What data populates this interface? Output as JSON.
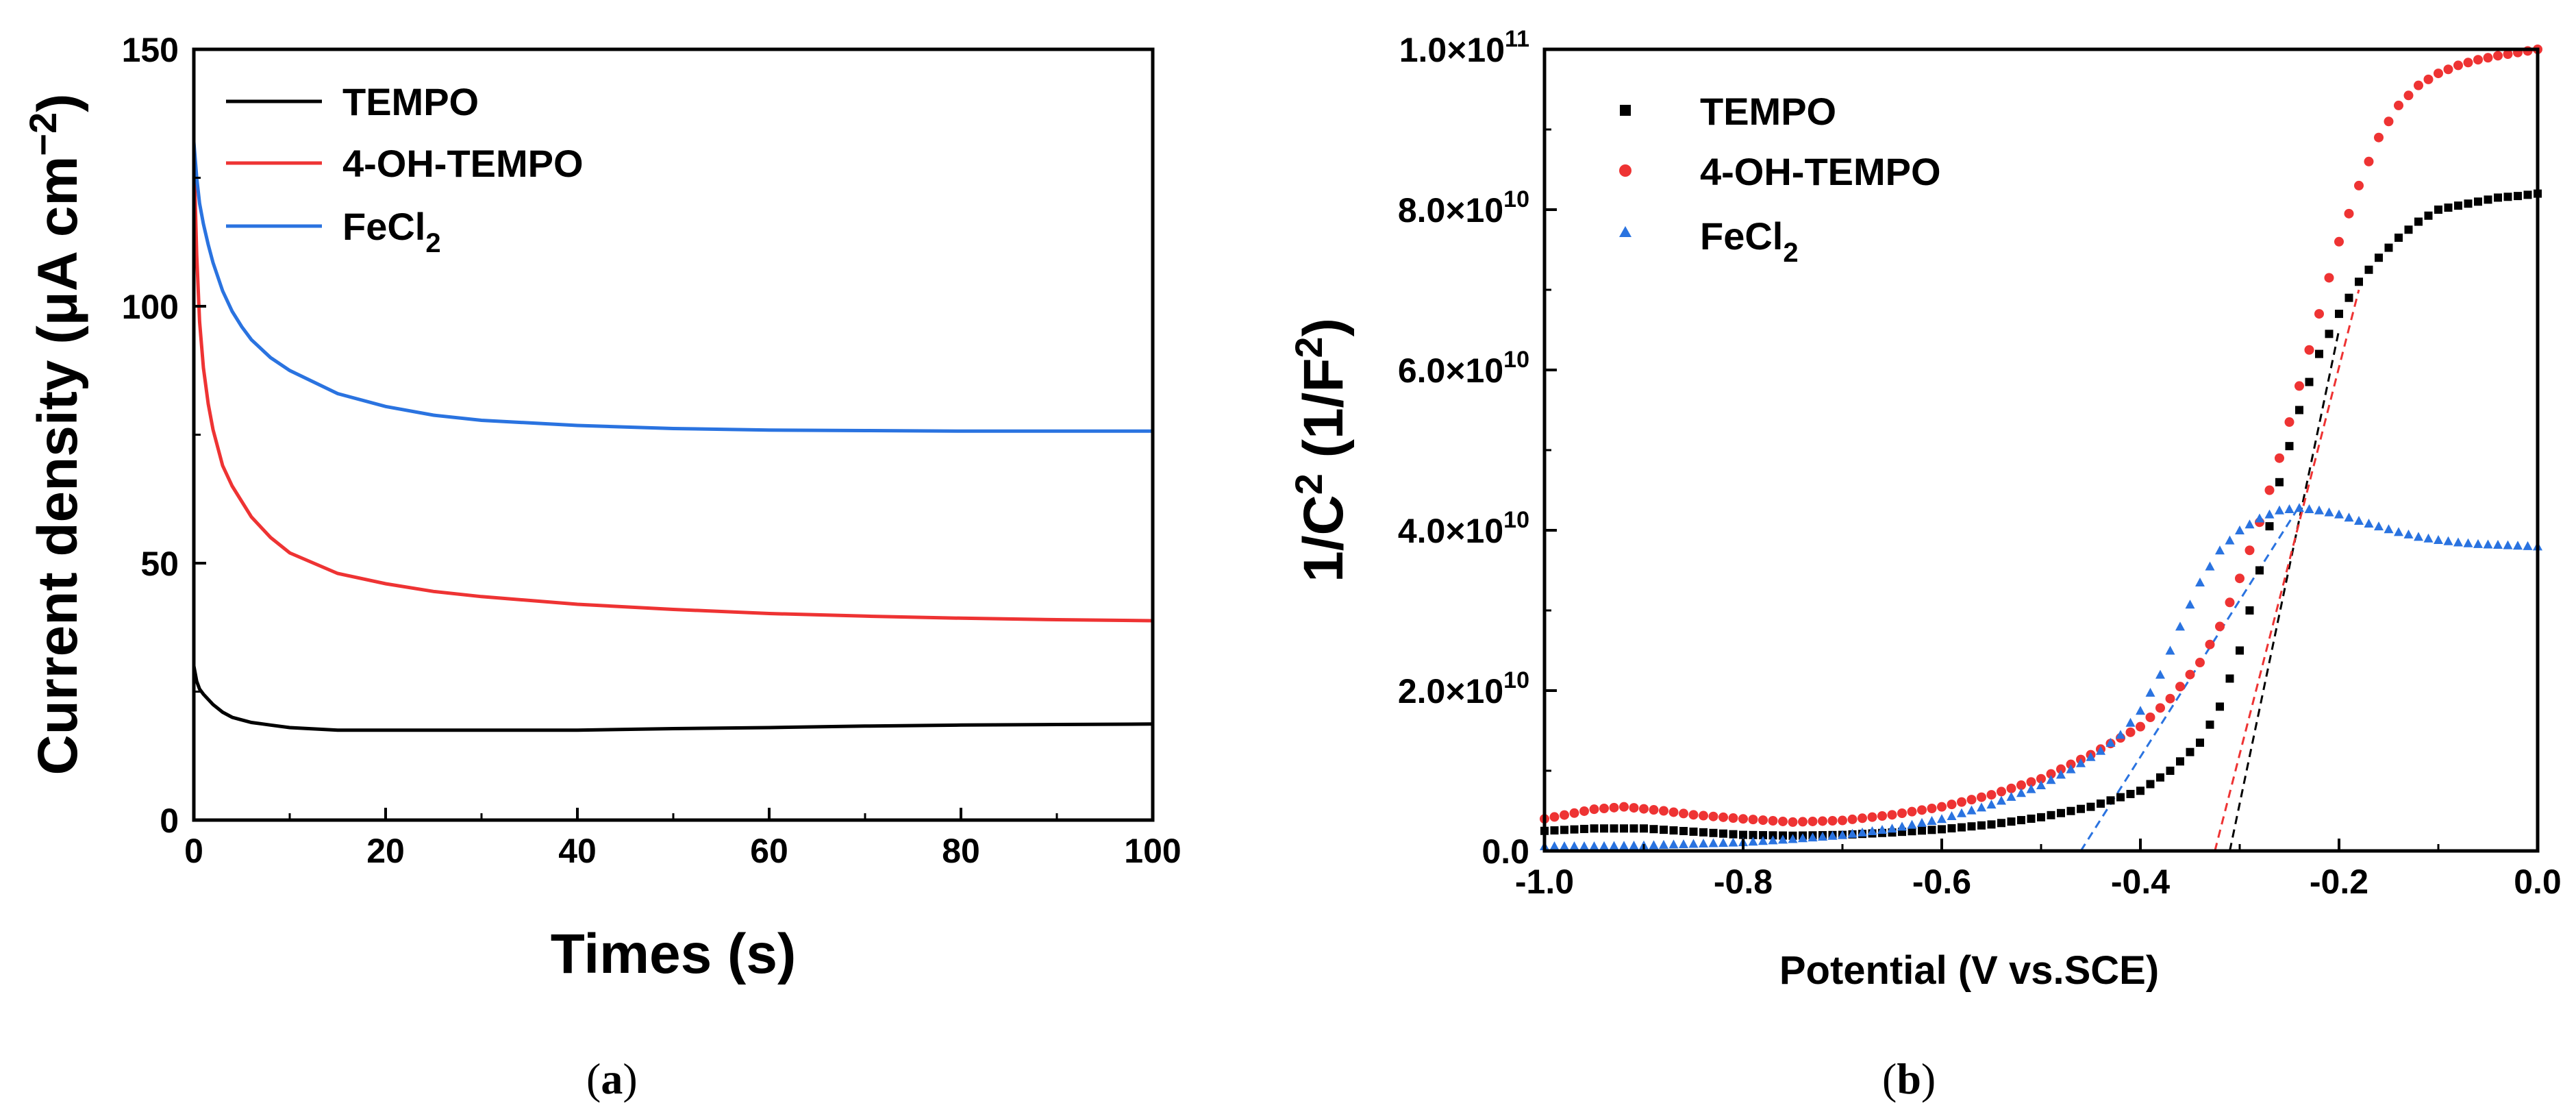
{
  "colors": {
    "tempo": "#000000",
    "oh_tempo": "#ee3333",
    "fecl2": "#2a73e0",
    "axis": "#000000"
  },
  "chart_data": [
    {
      "panel": "a",
      "caption": "(a)",
      "caption_letter": "a",
      "type": "line",
      "xlabel": "Times (s)",
      "ylabel": "Current density (μA cm⁻²)",
      "ylabel_main": "Current density (μA cm",
      "ylabel_sup": "−2",
      "ylabel_close": ")",
      "xlim": [
        0,
        100
      ],
      "ylim": [
        0,
        150
      ],
      "xticks": [
        "0",
        "20",
        "40",
        "60",
        "80",
        "100"
      ],
      "yticks": [
        "0",
        "50",
        "100",
        "150"
      ],
      "legend_placement": "top-left",
      "series": [
        {
          "name": "TEMPO",
          "label_main": "TEMPO",
          "label_sub": "",
          "color": "#000000",
          "x": [
            0,
            0.3,
            0.6,
            1,
            1.5,
            2,
            3,
            4,
            5,
            6,
            8,
            10,
            15,
            20,
            25,
            30,
            40,
            50,
            60,
            70,
            80,
            90,
            100
          ],
          "y": [
            30,
            27,
            25.5,
            24.5,
            23.5,
            22.5,
            21,
            20,
            19.5,
            19,
            18.5,
            18,
            17.5,
            17.5,
            17.5,
            17.5,
            17.5,
            17.8,
            18,
            18.3,
            18.5,
            18.6,
            18.7
          ]
        },
        {
          "name": "4-OH-TEMPO",
          "label_main": "4-OH-TEMPO",
          "label_sub": "",
          "color": "#ee3333",
          "x": [
            0,
            0.3,
            0.6,
            1,
            1.5,
            2,
            3,
            4,
            5,
            6,
            8,
            10,
            15,
            20,
            25,
            30,
            40,
            50,
            60,
            70,
            80,
            90,
            100
          ],
          "y": [
            130,
            110,
            97,
            88,
            81,
            76,
            69,
            65,
            62,
            59,
            55,
            52,
            48,
            46,
            44.5,
            43.5,
            42,
            41,
            40.2,
            39.7,
            39.3,
            39,
            38.8
          ]
        },
        {
          "name": "FeCl2",
          "label_main": "FeCl",
          "label_sub": "2",
          "color": "#2a73e0",
          "x": [
            0,
            0.3,
            0.6,
            1,
            1.5,
            2,
            3,
            4,
            5,
            6,
            8,
            10,
            15,
            20,
            25,
            30,
            40,
            50,
            60,
            70,
            80,
            90,
            100
          ],
          "y": [
            132,
            125,
            120,
            116,
            112,
            108.5,
            103,
            99,
            96,
            93.5,
            90,
            87.5,
            83,
            80.5,
            78.8,
            77.8,
            76.8,
            76.2,
            75.9,
            75.8,
            75.7,
            75.7,
            75.7
          ]
        }
      ]
    },
    {
      "panel": "b",
      "caption": "(b)",
      "caption_letter": "b",
      "type": "scatter",
      "xlabel": "Potential (V vs.SCE)",
      "ylabel": "1/C² (1/F²)",
      "ylabel_a": "1/C",
      "ylabel_sup1": "2",
      "ylabel_b": " (1/F",
      "ylabel_sup2": "2",
      "ylabel_c": ")",
      "xlim": [
        -1.0,
        0.0
      ],
      "ylim": [
        0,
        100000000000.0
      ],
      "xticks": [
        "-1.0",
        "-0.8",
        "-0.6",
        "-0.4",
        "-0.2",
        "0.0"
      ],
      "yticks": [
        {
          "mant": "0.0",
          "exp": ""
        },
        {
          "mant": "2.0×10",
          "exp": "10"
        },
        {
          "mant": "4.0×10",
          "exp": "10"
        },
        {
          "mant": "6.0×10",
          "exp": "10"
        },
        {
          "mant": "8.0×10",
          "exp": "10"
        },
        {
          "mant": "1.0×10",
          "exp": "11"
        }
      ],
      "legend_placement": "top-left",
      "series": [
        {
          "name": "TEMPO",
          "label_main": "TEMPO",
          "label_sub": "",
          "marker": "square",
          "color": "#000000",
          "x": [
            -1.0,
            -0.95,
            -0.9,
            -0.85,
            -0.8,
            -0.75,
            -0.7,
            -0.65,
            -0.6,
            -0.55,
            -0.5,
            -0.45,
            -0.4,
            -0.37,
            -0.34,
            -0.32,
            -0.3,
            -0.28,
            -0.26,
            -0.24,
            -0.22,
            -0.2,
            -0.18,
            -0.16,
            -0.14,
            -0.12,
            -0.1,
            -0.08,
            -0.06,
            -0.04,
            -0.02,
            0.0
          ],
          "y": [
            2500000000.0,
            2800000000.0,
            2800000000.0,
            2400000000.0,
            2000000000.0,
            1900000000.0,
            2000000000.0,
            2300000000.0,
            2700000000.0,
            3300000000.0,
            4200000000.0,
            5500000000.0,
            7500000000.0,
            10000000000.0,
            13500000000.0,
            18000000000.0,
            25000000000.0,
            35000000000.0,
            46000000000.0,
            55000000000.0,
            62000000000.0,
            67000000000.0,
            71000000000.0,
            74000000000.0,
            76500000000.0,
            78500000000.0,
            80000000000.0,
            80500000000.0,
            81000000000.0,
            81500000000.0,
            81700000000.0,
            82000000000.0
          ]
        },
        {
          "name": "4-OH-TEMPO",
          "label_main": "4-OH-TEMPO",
          "label_sub": "",
          "marker": "circle",
          "color": "#ee3333",
          "x": [
            -1.0,
            -0.95,
            -0.92,
            -0.88,
            -0.85,
            -0.8,
            -0.75,
            -0.7,
            -0.65,
            -0.6,
            -0.55,
            -0.5,
            -0.45,
            -0.4,
            -0.37,
            -0.34,
            -0.32,
            -0.3,
            -0.28,
            -0.26,
            -0.24,
            -0.22,
            -0.2,
            -0.18,
            -0.16,
            -0.14,
            -0.12,
            -0.1,
            -0.08,
            -0.06,
            -0.04,
            -0.02,
            0.0
          ],
          "y": [
            4000000000.0,
            5200000000.0,
            5500000000.0,
            5000000000.0,
            4500000000.0,
            4000000000.0,
            3600000000.0,
            3800000000.0,
            4500000000.0,
            5500000000.0,
            7000000000.0,
            9000000000.0,
            12000000000.0,
            15500000000.0,
            19000000000.0,
            23500000000.0,
            28000000000.0,
            34000000000.0,
            41000000000.0,
            49000000000.0,
            58000000000.0,
            67000000000.0,
            76000000000.0,
            83000000000.0,
            89000000000.0,
            93000000000.0,
            95500000000.0,
            97000000000.0,
            98000000000.0,
            98700000000.0,
            99200000000.0,
            99600000000.0,
            100000000000.0
          ]
        },
        {
          "name": "FeCl2",
          "label_main": "FeCl",
          "label_sub": "2",
          "marker": "triangle",
          "color": "#2a73e0",
          "x": [
            -1.0,
            -0.95,
            -0.9,
            -0.85,
            -0.8,
            -0.75,
            -0.7,
            -0.65,
            -0.6,
            -0.55,
            -0.5,
            -0.47,
            -0.44,
            -0.42,
            -0.4,
            -0.38,
            -0.36,
            -0.34,
            -0.32,
            -0.3,
            -0.28,
            -0.26,
            -0.24,
            -0.22,
            -0.2,
            -0.18,
            -0.16,
            -0.14,
            -0.12,
            -0.1,
            -0.08,
            -0.06,
            -0.04,
            -0.02,
            0.0
          ],
          "y": [
            600000000.0,
            600000000.0,
            700000000.0,
            900000000.0,
            1100000000.0,
            1500000000.0,
            2000000000.0,
            2800000000.0,
            4000000000.0,
            5800000000.0,
            8200000000.0,
            10200000000.0,
            12500000000.0,
            14500000000.0,
            17500000000.0,
            22000000000.0,
            28000000000.0,
            33500000000.0,
            37500000000.0,
            40000000000.0,
            41500000000.0,
            42500000000.0,
            42800000000.0,
            42500000000.0,
            42000000000.0,
            41200000000.0,
            40500000000.0,
            39800000000.0,
            39200000000.0,
            38800000000.0,
            38500000000.0,
            38300000000.0,
            38200000000.0,
            38100000000.0,
            38000000000.0
          ]
        }
      ],
      "fit_lines": [
        {
          "name": "TEMPO fit",
          "color": "#000000",
          "x": [
            -0.31,
            -0.2
          ],
          "y": [
            0,
            65000000000.0
          ]
        },
        {
          "name": "4-OH-TEMPO fit",
          "color": "#ee3333",
          "x": [
            -0.325,
            -0.18
          ],
          "y": [
            0,
            70000000000.0
          ]
        },
        {
          "name": "FeCl2 fit",
          "color": "#2a73e0",
          "x": [
            -0.46,
            -0.24
          ],
          "y": [
            0,
            43000000000.0
          ]
        }
      ]
    }
  ]
}
